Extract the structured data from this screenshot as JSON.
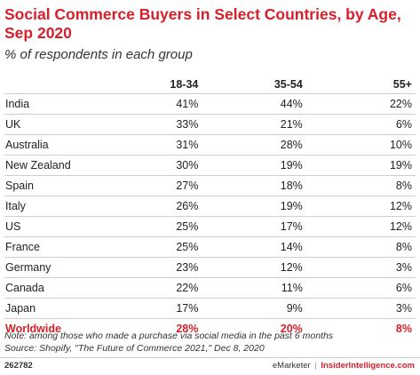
{
  "title": "Social Commerce Buyers in Select Countries, by Age, Sep 2020",
  "subtitle": "% of respondents in each group",
  "chart_data": {
    "type": "table",
    "title": "Social Commerce Buyers in Select Countries, by Age, Sep 2020",
    "subtitle": "% of respondents in each group",
    "columns": [
      "",
      "18-34",
      "35-54",
      "55+"
    ],
    "rows": [
      {
        "country": "India",
        "values": [
          "41%",
          "44%",
          "22%"
        ]
      },
      {
        "country": "UK",
        "values": [
          "33%",
          "21%",
          "6%"
        ]
      },
      {
        "country": "Australia",
        "values": [
          "31%",
          "28%",
          "10%"
        ]
      },
      {
        "country": "New Zealand",
        "values": [
          "30%",
          "19%",
          "19%"
        ]
      },
      {
        "country": "Spain",
        "values": [
          "27%",
          "18%",
          "8%"
        ]
      },
      {
        "country": "Italy",
        "values": [
          "26%",
          "19%",
          "12%"
        ]
      },
      {
        "country": "US",
        "values": [
          "25%",
          "17%",
          "12%"
        ]
      },
      {
        "country": "France",
        "values": [
          "25%",
          "14%",
          "8%"
        ]
      },
      {
        "country": "Germany",
        "values": [
          "23%",
          "12%",
          "3%"
        ]
      },
      {
        "country": "Canada",
        "values": [
          "22%",
          "11%",
          "6%"
        ]
      },
      {
        "country": "Japan",
        "values": [
          "17%",
          "9%",
          "3%"
        ]
      },
      {
        "country": "Worldwide",
        "values": [
          "28%",
          "20%",
          "8%"
        ],
        "highlight": true
      }
    ]
  },
  "notes": {
    "note": "Note: among those who made a purchase via social media in the past 6 months",
    "source": "Source: Shopify, \"The Future of Commerce 2021,\" Dec 8, 2020"
  },
  "footer": {
    "chart_id": "262782",
    "brand": "eMarketer",
    "separator": "|",
    "site": "InsiderIntelligence.com"
  },
  "colors": {
    "accent": "#d71f2b",
    "text": "#222222",
    "rule": "#cfcfcf"
  }
}
